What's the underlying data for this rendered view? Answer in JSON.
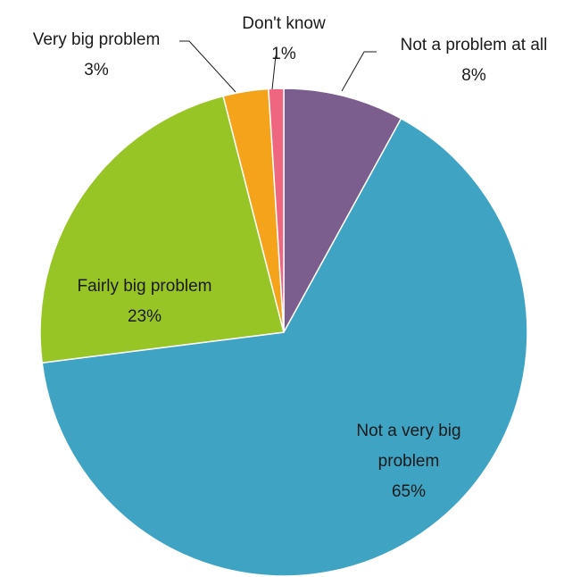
{
  "chart_data": {
    "type": "pie",
    "title": "",
    "start_angle_deg": 0,
    "direction": "clockwise",
    "slices": [
      {
        "name": "Not a problem at all",
        "value": 8,
        "label": "8%",
        "color": "#7b5e8d"
      },
      {
        "name": "Not a very big problem",
        "value": 65,
        "label": "65%",
        "color": "#3fa3c3"
      },
      {
        "name": "Fairly big problem",
        "value": 23,
        "label": "23%",
        "color": "#98c526"
      },
      {
        "name": "Very big problem",
        "value": 3,
        "label": "3%",
        "color": "#f5a31a"
      },
      {
        "name": "Don't know",
        "value": 1,
        "label": "1%",
        "color": "#ef6680"
      }
    ]
  }
}
